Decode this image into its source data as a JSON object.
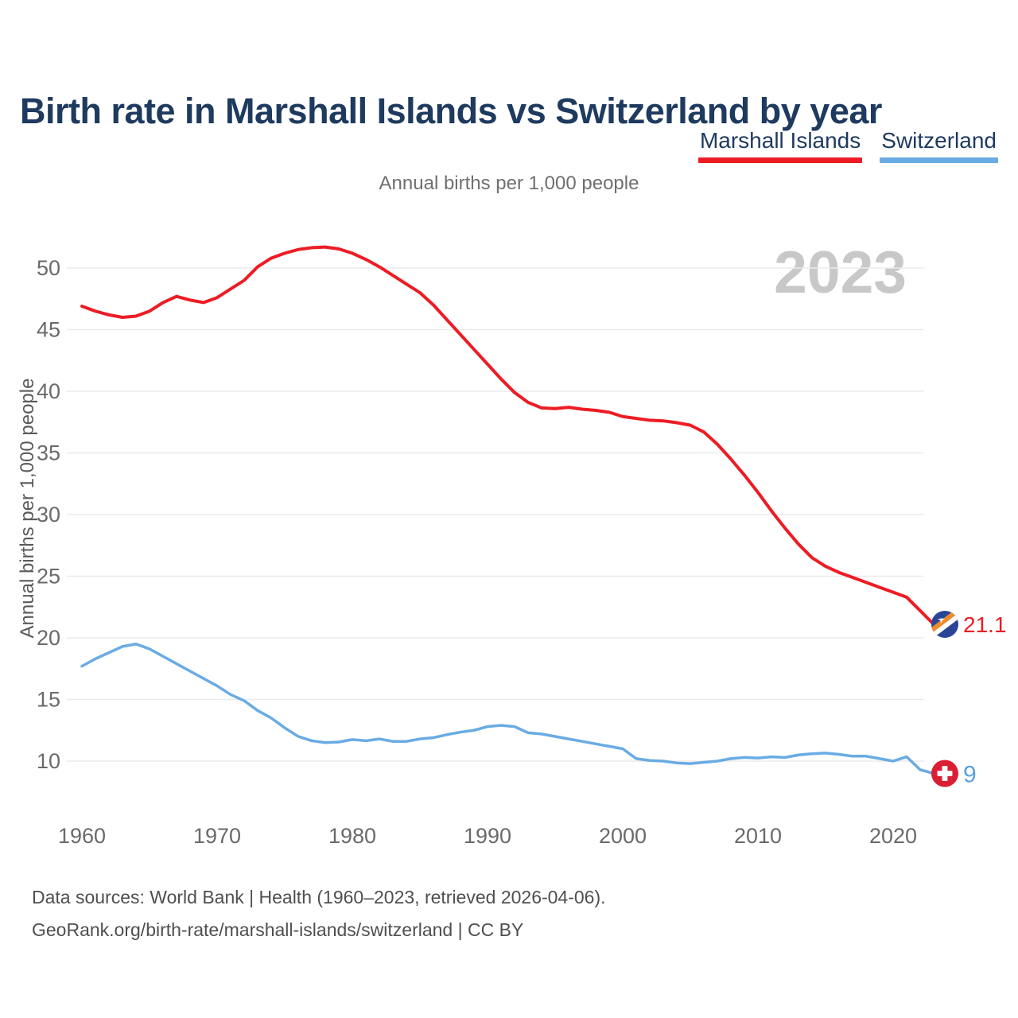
{
  "header": {
    "title": "Birth rate in Marshall Islands vs Switzerland by year"
  },
  "legend": {
    "items": [
      {
        "label": "Marshall Islands",
        "color": "#ed1c24"
      },
      {
        "label": "Switzerland",
        "color": "#6aabe3"
      }
    ]
  },
  "chart": {
    "subtitle": "Annual births per 1,000 people",
    "watermark": "2023",
    "y_axis_title": "Annual births per 1,000 people"
  },
  "end_labels": {
    "marshall_islands": "21.1",
    "switzerland": "9"
  },
  "footer": {
    "line1": "Data sources: World Bank | Health (1960–2023, retrieved 2026-04-06).",
    "line2": "GeoRank.org/birth-rate/marshall-islands/switzerland | CC BY"
  },
  "colors": {
    "title_navy": "#1e3a5f",
    "marshall_red": "#ed1c24",
    "switzerland_blue": "#6aabe3",
    "end_label_blue": "#5ba1dd",
    "gridline": "#ebebeb",
    "tick_text": "#6a6a6a",
    "watermark_gray": "#c8c8c8",
    "mh_flag_blue": "#2a4598",
    "mh_flag_orange": "#ef8b2a",
    "ch_flag_red": "#da1f33"
  },
  "chart_data": {
    "type": "line",
    "title": "Birth rate in Marshall Islands vs Switzerland by year",
    "subtitle": "Annual births per 1,000 people",
    "xlabel": "",
    "ylabel": "Annual births per 1,000 people",
    "x_range": [
      1960,
      2023
    ],
    "ylim": [
      7,
      53
    ],
    "y_ticks": [
      10,
      15,
      20,
      25,
      30,
      35,
      40,
      45,
      50
    ],
    "x_ticks": [
      1960,
      1970,
      1980,
      1990,
      2000,
      2010,
      2020
    ],
    "grid": true,
    "legend_position": "top-right",
    "x": [
      1960,
      1961,
      1962,
      1963,
      1964,
      1965,
      1966,
      1967,
      1968,
      1969,
      1970,
      1971,
      1972,
      1973,
      1974,
      1975,
      1976,
      1977,
      1978,
      1979,
      1980,
      1981,
      1982,
      1983,
      1984,
      1985,
      1986,
      1987,
      1988,
      1989,
      1990,
      1991,
      1992,
      1993,
      1994,
      1995,
      1996,
      1997,
      1998,
      1999,
      2000,
      2001,
      2002,
      2003,
      2004,
      2005,
      2006,
      2007,
      2008,
      2009,
      2010,
      2011,
      2012,
      2013,
      2014,
      2015,
      2016,
      2017,
      2018,
      2019,
      2020,
      2021,
      2022,
      2023
    ],
    "series": [
      {
        "name": "Marshall Islands",
        "color": "#ed1c24",
        "stroke_width": 4,
        "end_label": "21.1",
        "values": [
          46.9,
          46.5,
          46.2,
          46.0,
          46.1,
          46.5,
          47.2,
          47.7,
          47.4,
          47.2,
          47.6,
          48.3,
          49.0,
          50.1,
          50.8,
          51.2,
          51.5,
          51.65,
          51.7,
          51.55,
          51.2,
          50.7,
          50.1,
          49.4,
          48.7,
          48.0,
          47.0,
          45.8,
          44.6,
          43.4,
          42.2,
          41.0,
          39.9,
          39.1,
          38.65,
          38.6,
          38.7,
          38.55,
          38.45,
          38.3,
          37.95,
          37.8,
          37.65,
          37.6,
          37.45,
          37.25,
          36.7,
          35.7,
          34.5,
          33.2,
          31.8,
          30.3,
          28.9,
          27.6,
          26.5,
          25.8,
          25.3,
          24.9,
          24.5,
          24.1,
          23.7,
          23.3,
          22.2,
          21.1
        ]
      },
      {
        "name": "Switzerland",
        "color": "#6aabe3",
        "stroke_width": 3.5,
        "end_label": "9",
        "values": [
          17.7,
          18.3,
          18.8,
          19.3,
          19.5,
          19.1,
          18.5,
          17.9,
          17.3,
          16.7,
          16.1,
          15.4,
          14.9,
          14.1,
          13.5,
          12.7,
          12.0,
          11.65,
          11.5,
          11.55,
          11.75,
          11.65,
          11.8,
          11.6,
          11.6,
          11.8,
          11.9,
          12.15,
          12.35,
          12.5,
          12.8,
          12.9,
          12.8,
          12.3,
          12.2,
          12.0,
          11.8,
          11.6,
          11.4,
          11.2,
          11.0,
          10.2,
          10.05,
          10.0,
          9.85,
          9.8,
          9.9,
          10.0,
          10.2,
          10.3,
          10.25,
          10.35,
          10.3,
          10.5,
          10.6,
          10.65,
          10.55,
          10.4,
          10.4,
          10.2,
          10.0,
          10.35,
          9.3,
          9.0
        ]
      }
    ]
  }
}
